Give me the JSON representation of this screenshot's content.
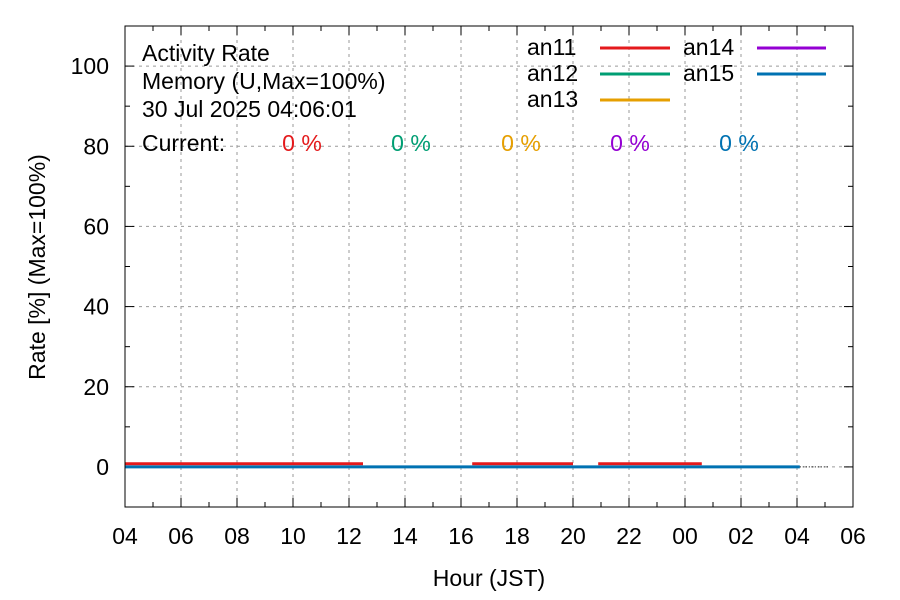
{
  "chart_data": {
    "type": "line",
    "title_lines": [
      "Activity Rate",
      "Memory (U,Max=100%)",
      "30 Jul 2025 04:06:01"
    ],
    "current_label": "Current:",
    "xlabel": "Hour (JST)",
    "ylabel": "Rate [%]  (Max=100%)",
    "xlim": [
      0,
      26
    ],
    "ylim": [
      -10,
      110
    ],
    "x_ticks": [
      {
        "x": 0,
        "label": "04"
      },
      {
        "x": 2,
        "label": "06"
      },
      {
        "x": 4,
        "label": "08"
      },
      {
        "x": 6,
        "label": "10"
      },
      {
        "x": 8,
        "label": "12"
      },
      {
        "x": 10,
        "label": "14"
      },
      {
        "x": 12,
        "label": "16"
      },
      {
        "x": 14,
        "label": "18"
      },
      {
        "x": 16,
        "label": "20"
      },
      {
        "x": 18,
        "label": "22"
      },
      {
        "x": 20,
        "label": "00"
      },
      {
        "x": 22,
        "label": "02"
      },
      {
        "x": 24,
        "label": "04"
      },
      {
        "x": 26,
        "label": "06"
      }
    ],
    "y_ticks": [
      0,
      20,
      40,
      60,
      80,
      100
    ],
    "grid": true,
    "legend_position": "top-right",
    "series": [
      {
        "name": "an11",
        "color": "#e41a1c",
        "current": "0 %",
        "segments": [
          [
            [
              0,
              0.8
            ],
            [
              8.5,
              0.8
            ]
          ],
          [
            [
              12.4,
              0.8
            ],
            [
              16.0,
              0.8
            ]
          ],
          [
            [
              16.9,
              0.8
            ],
            [
              20.6,
              0.8
            ]
          ]
        ]
      },
      {
        "name": "an12",
        "color": "#009e73",
        "current": "0 %",
        "segments": []
      },
      {
        "name": "an13",
        "color": "#e69f00",
        "current": "0 %",
        "segments": []
      },
      {
        "name": "an14",
        "color": "#9400d3",
        "current": "0 %",
        "segments": []
      },
      {
        "name": "an15",
        "color": "#0072b2",
        "current": "0 %",
        "segments": [
          [
            [
              0,
              0
            ],
            [
              24.1,
              0
            ]
          ]
        ]
      }
    ],
    "dotted_tail": [
      [
        24.1,
        0
      ],
      [
        25.1,
        0
      ]
    ]
  }
}
